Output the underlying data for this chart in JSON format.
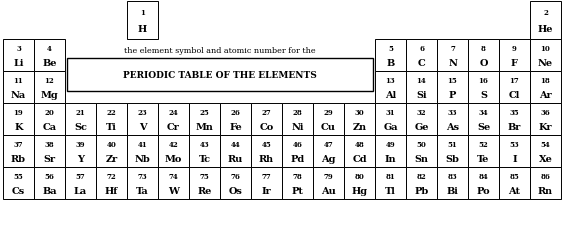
{
  "bg_color": "#ffffff",
  "border_color": "#000000",
  "text_color": "#000000",
  "title_text": "PERIODIC TABLE OF THE ELEMENTS",
  "subtitle_text": "the element symbol and atomic number for the",
  "elements": [
    {
      "num": "1",
      "sym": "H",
      "row": 0,
      "col": 4
    },
    {
      "num": "2",
      "sym": "He",
      "row": 0,
      "col": 17
    },
    {
      "num": "3",
      "sym": "Li",
      "row": 1,
      "col": 0
    },
    {
      "num": "4",
      "sym": "Be",
      "row": 1,
      "col": 1
    },
    {
      "num": "5",
      "sym": "B",
      "row": 1,
      "col": 12
    },
    {
      "num": "6",
      "sym": "C",
      "row": 1,
      "col": 13
    },
    {
      "num": "7",
      "sym": "N",
      "row": 1,
      "col": 14
    },
    {
      "num": "8",
      "sym": "O",
      "row": 1,
      "col": 15
    },
    {
      "num": "9",
      "sym": "F",
      "row": 1,
      "col": 16
    },
    {
      "num": "10",
      "sym": "Ne",
      "row": 1,
      "col": 17
    },
    {
      "num": "11",
      "sym": "Na",
      "row": 2,
      "col": 0
    },
    {
      "num": "12",
      "sym": "Mg",
      "row": 2,
      "col": 1
    },
    {
      "num": "13",
      "sym": "Al",
      "row": 2,
      "col": 12
    },
    {
      "num": "14",
      "sym": "Si",
      "row": 2,
      "col": 13
    },
    {
      "num": "15",
      "sym": "P",
      "row": 2,
      "col": 14
    },
    {
      "num": "16",
      "sym": "S",
      "row": 2,
      "col": 15
    },
    {
      "num": "17",
      "sym": "Cl",
      "row": 2,
      "col": 16
    },
    {
      "num": "18",
      "sym": "Ar",
      "row": 2,
      "col": 17
    },
    {
      "num": "19",
      "sym": "K",
      "row": 3,
      "col": 0
    },
    {
      "num": "20",
      "sym": "Ca",
      "row": 3,
      "col": 1
    },
    {
      "num": "21",
      "sym": "Sc",
      "row": 3,
      "col": 2
    },
    {
      "num": "22",
      "sym": "Ti",
      "row": 3,
      "col": 3
    },
    {
      "num": "23",
      "sym": "V",
      "row": 3,
      "col": 4
    },
    {
      "num": "24",
      "sym": "Cr",
      "row": 3,
      "col": 5
    },
    {
      "num": "25",
      "sym": "Mn",
      "row": 3,
      "col": 6
    },
    {
      "num": "26",
      "sym": "Fe",
      "row": 3,
      "col": 7
    },
    {
      "num": "27",
      "sym": "Co",
      "row": 3,
      "col": 8
    },
    {
      "num": "28",
      "sym": "Ni",
      "row": 3,
      "col": 9
    },
    {
      "num": "29",
      "sym": "Cu",
      "row": 3,
      "col": 10
    },
    {
      "num": "30",
      "sym": "Zn",
      "row": 3,
      "col": 11
    },
    {
      "num": "31",
      "sym": "Ga",
      "row": 3,
      "col": 12
    },
    {
      "num": "32",
      "sym": "Ge",
      "row": 3,
      "col": 13
    },
    {
      "num": "33",
      "sym": "As",
      "row": 3,
      "col": 14
    },
    {
      "num": "34",
      "sym": "Se",
      "row": 3,
      "col": 15
    },
    {
      "num": "35",
      "sym": "Br",
      "row": 3,
      "col": 16
    },
    {
      "num": "36",
      "sym": "Kr",
      "row": 3,
      "col": 17
    },
    {
      "num": "37",
      "sym": "Rb",
      "row": 4,
      "col": 0
    },
    {
      "num": "38",
      "sym": "Sr",
      "row": 4,
      "col": 1
    },
    {
      "num": "39",
      "sym": "Y",
      "row": 4,
      "col": 2
    },
    {
      "num": "40",
      "sym": "Zr",
      "row": 4,
      "col": 3
    },
    {
      "num": "41",
      "sym": "Nb",
      "row": 4,
      "col": 4
    },
    {
      "num": "42",
      "sym": "Mo",
      "row": 4,
      "col": 5
    },
    {
      "num": "43",
      "sym": "Tc",
      "row": 4,
      "col": 6
    },
    {
      "num": "44",
      "sym": "Ru",
      "row": 4,
      "col": 7
    },
    {
      "num": "45",
      "sym": "Rh",
      "row": 4,
      "col": 8
    },
    {
      "num": "46",
      "sym": "Pd",
      "row": 4,
      "col": 9
    },
    {
      "num": "47",
      "sym": "Ag",
      "row": 4,
      "col": 10
    },
    {
      "num": "48",
      "sym": "Cd",
      "row": 4,
      "col": 11
    },
    {
      "num": "49",
      "sym": "In",
      "row": 4,
      "col": 12
    },
    {
      "num": "50",
      "sym": "Sn",
      "row": 4,
      "col": 13
    },
    {
      "num": "51",
      "sym": "Sb",
      "row": 4,
      "col": 14
    },
    {
      "num": "52",
      "sym": "Te",
      "row": 4,
      "col": 15
    },
    {
      "num": "53",
      "sym": "I",
      "row": 4,
      "col": 16
    },
    {
      "num": "54",
      "sym": "Xe",
      "row": 4,
      "col": 17
    },
    {
      "num": "55",
      "sym": "Cs",
      "row": 5,
      "col": 0
    },
    {
      "num": "56",
      "sym": "Ba",
      "row": 5,
      "col": 1
    },
    {
      "num": "57",
      "sym": "La",
      "row": 5,
      "col": 2
    },
    {
      "num": "72",
      "sym": "Hf",
      "row": 5,
      "col": 3
    },
    {
      "num": "73",
      "sym": "Ta",
      "row": 5,
      "col": 4
    },
    {
      "num": "74",
      "sym": "W",
      "row": 5,
      "col": 5
    },
    {
      "num": "75",
      "sym": "Re",
      "row": 5,
      "col": 6
    },
    {
      "num": "76",
      "sym": "Os",
      "row": 5,
      "col": 7
    },
    {
      "num": "77",
      "sym": "Ir",
      "row": 5,
      "col": 8
    },
    {
      "num": "78",
      "sym": "Pt",
      "row": 5,
      "col": 9
    },
    {
      "num": "79",
      "sym": "Au",
      "row": 5,
      "col": 10
    },
    {
      "num": "80",
      "sym": "Hg",
      "row": 5,
      "col": 11
    },
    {
      "num": "81",
      "sym": "Tl",
      "row": 5,
      "col": 12
    },
    {
      "num": "82",
      "sym": "Pb",
      "row": 5,
      "col": 13
    },
    {
      "num": "83",
      "sym": "Bi",
      "row": 5,
      "col": 14
    },
    {
      "num": "84",
      "sym": "Po",
      "row": 5,
      "col": 15
    },
    {
      "num": "85",
      "sym": "At",
      "row": 5,
      "col": 16
    },
    {
      "num": "86",
      "sym": "Rn",
      "row": 5,
      "col": 17
    }
  ],
  "num_rows": 6,
  "num_cols": 18,
  "fig_w": 5.64,
  "fig_h": 2.3,
  "dpi": 100,
  "num_fontsize": 5.0,
  "sym_fontsize": 7.0,
  "subtitle_fontsize": 5.8,
  "title_fontsize": 6.5,
  "linewidth": 0.7
}
